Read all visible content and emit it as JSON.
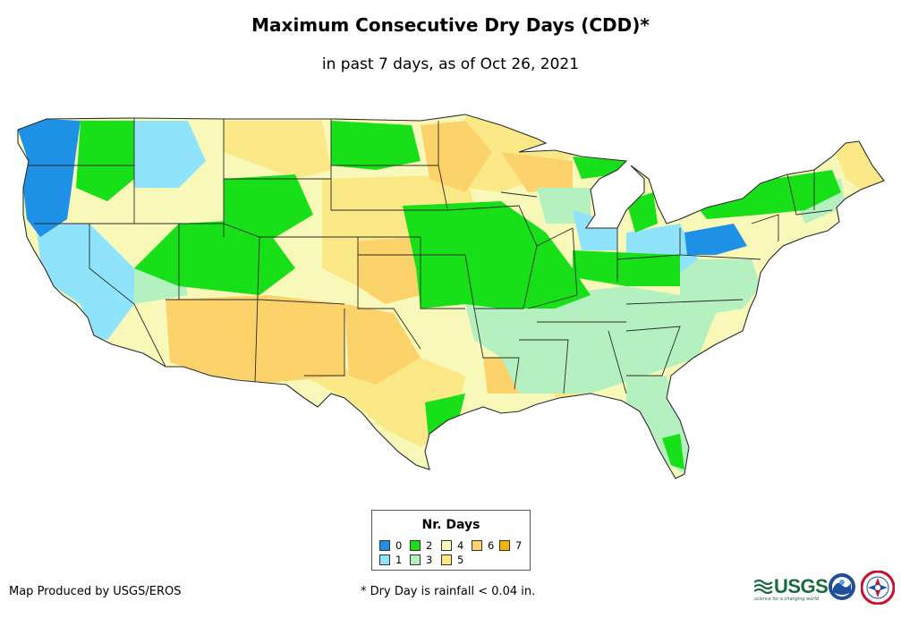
{
  "title": "Maximum Consecutive Dry Days (CDD)*",
  "subtitle": "in past 7 days, as of Oct 26, 2021",
  "legend": {
    "title": "Nr. Days",
    "items": [
      {
        "label": "0",
        "color": "#1e90e6"
      },
      {
        "label": "1",
        "color": "#8fe3fa"
      },
      {
        "label": "2",
        "color": "#18e018"
      },
      {
        "label": "3",
        "color": "#b4f0c0"
      },
      {
        "label": "4",
        "color": "#f8f8b8"
      },
      {
        "label": "5",
        "color": "#fbe887"
      },
      {
        "label": "6",
        "color": "#fbd36a"
      },
      {
        "label": "7",
        "color": "#f7b500"
      }
    ]
  },
  "footer": {
    "credit": "Map Produced by USGS/EROS",
    "footnote": "* Dry Day is rainfall < 0.04 in.",
    "usgs_logo": "USGS",
    "usgs_tagline": "science for a changing world"
  },
  "logos": [
    "usgs-logo",
    "noaa-logo",
    "nws-logo"
  ]
}
